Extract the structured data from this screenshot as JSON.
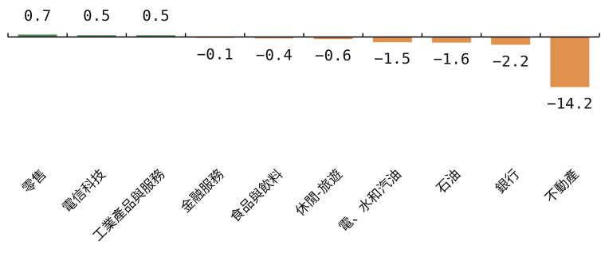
{
  "chart_data": {
    "type": "bar",
    "categories": [
      "零售",
      "電信科技",
      "工業產品與服務",
      "金融服務",
      "食品與飲料",
      "休閒-旅遊",
      "電、水和汽油",
      "石油",
      "銀行",
      "不動產"
    ],
    "values": [
      0.7,
      0.5,
      0.5,
      -0.1,
      -0.4,
      -0.6,
      -1.5,
      -1.6,
      -2.2,
      -14.2
    ],
    "value_labels": [
      "0.7",
      "0.5",
      "0.5",
      "-0.1",
      "-0.4",
      "-0.6",
      "-1.5",
      "-1.6",
      "-2.2",
      "-14.2"
    ],
    "positive_color": "#4e8a57",
    "negative_color": "#e0914b",
    "axis_color": "#000000",
    "grid": false,
    "ylim": [
      -14.2,
      0.7
    ]
  }
}
